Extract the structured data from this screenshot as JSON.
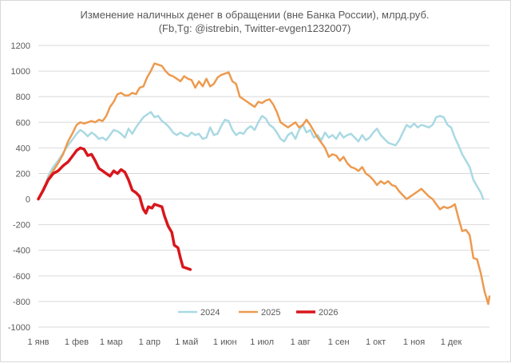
{
  "chart_data": {
    "type": "line",
    "title": "Изменение наличных денег в обращении (вне Банка России), млрд.руб.",
    "subtitle": "(Fb,Tg: @istrebin, Twitter-evgen1232007)",
    "xlabel": "",
    "ylabel": "",
    "x_tick_labels": [
      "1 янв",
      "1 фев",
      "1 мар",
      "1 апр",
      "1 май",
      "1 июн",
      "1 июл",
      "1 авг",
      "1 сен",
      "1 окт",
      "1 ноя",
      "1 дек"
    ],
    "x_tick_days": [
      1,
      32,
      60,
      91,
      121,
      152,
      182,
      213,
      244,
      274,
      305,
      335
    ],
    "x_range_days": [
      1,
      366
    ],
    "y_ticks": [
      1200,
      1000,
      800,
      600,
      400,
      200,
      0,
      -200,
      -400,
      -600,
      -800,
      -1000
    ],
    "ylim": [
      -1000,
      1200
    ],
    "grid": "horizontal",
    "legend_position": "bottom-center",
    "series": [
      {
        "name": "2024",
        "color": "#a9d9e3",
        "width": 2.5,
        "points": [
          [
            1,
            0
          ],
          [
            5,
            60
          ],
          [
            9,
            180
          ],
          [
            13,
            250
          ],
          [
            17,
            300
          ],
          [
            21,
            360
          ],
          [
            25,
            420
          ],
          [
            29,
            470
          ],
          [
            32,
            510
          ],
          [
            35,
            540
          ],
          [
            38,
            520
          ],
          [
            41,
            490
          ],
          [
            44,
            520
          ],
          [
            47,
            500
          ],
          [
            50,
            470
          ],
          [
            53,
            480
          ],
          [
            56,
            460
          ],
          [
            59,
            500
          ],
          [
            62,
            540
          ],
          [
            65,
            530
          ],
          [
            68,
            510
          ],
          [
            71,
            480
          ],
          [
            74,
            550
          ],
          [
            77,
            510
          ],
          [
            80,
            560
          ],
          [
            83,
            600
          ],
          [
            86,
            640
          ],
          [
            89,
            660
          ],
          [
            92,
            680
          ],
          [
            95,
            640
          ],
          [
            98,
            650
          ],
          [
            101,
            610
          ],
          [
            104,
            590
          ],
          [
            107,
            560
          ],
          [
            110,
            520
          ],
          [
            113,
            500
          ],
          [
            116,
            520
          ],
          [
            119,
            500
          ],
          [
            122,
            490
          ],
          [
            125,
            520
          ],
          [
            128,
            500
          ],
          [
            131,
            510
          ],
          [
            134,
            470
          ],
          [
            137,
            480
          ],
          [
            140,
            560
          ],
          [
            143,
            500
          ],
          [
            146,
            510
          ],
          [
            149,
            570
          ],
          [
            152,
            620
          ],
          [
            155,
            610
          ],
          [
            158,
            540
          ],
          [
            161,
            500
          ],
          [
            164,
            520
          ],
          [
            167,
            510
          ],
          [
            170,
            550
          ],
          [
            173,
            570
          ],
          [
            176,
            540
          ],
          [
            179,
            600
          ],
          [
            182,
            650
          ],
          [
            185,
            630
          ],
          [
            188,
            580
          ],
          [
            191,
            560
          ],
          [
            194,
            520
          ],
          [
            197,
            470
          ],
          [
            200,
            450
          ],
          [
            203,
            500
          ],
          [
            206,
            520
          ],
          [
            209,
            470
          ],
          [
            212,
            540
          ],
          [
            215,
            580
          ],
          [
            218,
            520
          ],
          [
            221,
            540
          ],
          [
            224,
            480
          ],
          [
            227,
            500
          ],
          [
            230,
            460
          ],
          [
            233,
            520
          ],
          [
            236,
            480
          ],
          [
            239,
            500
          ],
          [
            242,
            470
          ],
          [
            245,
            520
          ],
          [
            248,
            480
          ],
          [
            251,
            500
          ],
          [
            254,
            510
          ],
          [
            257,
            480
          ],
          [
            260,
            450
          ],
          [
            263,
            500
          ],
          [
            266,
            460
          ],
          [
            269,
            480
          ],
          [
            272,
            520
          ],
          [
            275,
            550
          ],
          [
            278,
            500
          ],
          [
            281,
            470
          ],
          [
            284,
            440
          ],
          [
            287,
            430
          ],
          [
            290,
            420
          ],
          [
            293,
            460
          ],
          [
            296,
            520
          ],
          [
            299,
            580
          ],
          [
            302,
            560
          ],
          [
            305,
            590
          ],
          [
            308,
            560
          ],
          [
            311,
            580
          ],
          [
            314,
            570
          ],
          [
            317,
            560
          ],
          [
            320,
            580
          ],
          [
            323,
            640
          ],
          [
            326,
            650
          ],
          [
            329,
            640
          ],
          [
            332,
            580
          ],
          [
            335,
            560
          ],
          [
            338,
            480
          ],
          [
            341,
            420
          ],
          [
            344,
            350
          ],
          [
            347,
            300
          ],
          [
            350,
            250
          ],
          [
            353,
            150
          ],
          [
            356,
            100
          ],
          [
            359,
            50
          ],
          [
            361,
            0
          ]
        ]
      },
      {
        "name": "2025",
        "color": "#ed9a4f",
        "width": 2.5,
        "points": [
          [
            1,
            0
          ],
          [
            5,
            80
          ],
          [
            9,
            160
          ],
          [
            13,
            220
          ],
          [
            17,
            280
          ],
          [
            21,
            350
          ],
          [
            25,
            450
          ],
          [
            29,
            520
          ],
          [
            32,
            580
          ],
          [
            35,
            600
          ],
          [
            38,
            590
          ],
          [
            41,
            600
          ],
          [
            44,
            610
          ],
          [
            47,
            600
          ],
          [
            50,
            620
          ],
          [
            53,
            610
          ],
          [
            56,
            650
          ],
          [
            59,
            720
          ],
          [
            62,
            760
          ],
          [
            65,
            820
          ],
          [
            68,
            830
          ],
          [
            71,
            810
          ],
          [
            74,
            810
          ],
          [
            77,
            830
          ],
          [
            80,
            820
          ],
          [
            83,
            870
          ],
          [
            86,
            880
          ],
          [
            89,
            950
          ],
          [
            92,
            1000
          ],
          [
            95,
            1060
          ],
          [
            98,
            1050
          ],
          [
            101,
            1040
          ],
          [
            104,
            1000
          ],
          [
            107,
            970
          ],
          [
            110,
            960
          ],
          [
            113,
            940
          ],
          [
            116,
            920
          ],
          [
            119,
            960
          ],
          [
            122,
            940
          ],
          [
            125,
            930
          ],
          [
            128,
            870
          ],
          [
            131,
            920
          ],
          [
            134,
            880
          ],
          [
            137,
            940
          ],
          [
            140,
            880
          ],
          [
            143,
            900
          ],
          [
            146,
            950
          ],
          [
            149,
            970
          ],
          [
            152,
            980
          ],
          [
            155,
            990
          ],
          [
            158,
            920
          ],
          [
            161,
            900
          ],
          [
            164,
            800
          ],
          [
            167,
            780
          ],
          [
            170,
            760
          ],
          [
            173,
            740
          ],
          [
            176,
            720
          ],
          [
            179,
            760
          ],
          [
            182,
            750
          ],
          [
            185,
            770
          ],
          [
            188,
            780
          ],
          [
            191,
            740
          ],
          [
            194,
            680
          ],
          [
            197,
            600
          ],
          [
            200,
            580
          ],
          [
            203,
            560
          ],
          [
            206,
            580
          ],
          [
            209,
            600
          ],
          [
            212,
            560
          ],
          [
            215,
            580
          ],
          [
            218,
            620
          ],
          [
            221,
            580
          ],
          [
            224,
            530
          ],
          [
            227,
            480
          ],
          [
            230,
            440
          ],
          [
            233,
            400
          ],
          [
            236,
            330
          ],
          [
            239,
            350
          ],
          [
            242,
            340
          ],
          [
            245,
            300
          ],
          [
            248,
            330
          ],
          [
            251,
            280
          ],
          [
            254,
            250
          ],
          [
            257,
            240
          ],
          [
            260,
            220
          ],
          [
            263,
            250
          ],
          [
            266,
            200
          ],
          [
            269,
            180
          ],
          [
            272,
            150
          ],
          [
            275,
            110
          ],
          [
            278,
            140
          ],
          [
            281,
            120
          ],
          [
            284,
            140
          ],
          [
            287,
            110
          ],
          [
            290,
            100
          ],
          [
            293,
            60
          ],
          [
            296,
            30
          ],
          [
            299,
            0
          ],
          [
            302,
            20
          ],
          [
            305,
            40
          ],
          [
            308,
            60
          ],
          [
            311,
            80
          ],
          [
            314,
            50
          ],
          [
            317,
            20
          ],
          [
            320,
            0
          ],
          [
            323,
            -40
          ],
          [
            326,
            -80
          ],
          [
            329,
            -60
          ],
          [
            332,
            -70
          ],
          [
            335,
            -60
          ],
          [
            338,
            -40
          ],
          [
            341,
            -150
          ],
          [
            344,
            -250
          ],
          [
            347,
            -240
          ],
          [
            350,
            -280
          ],
          [
            353,
            -460
          ],
          [
            356,
            -470
          ],
          [
            359,
            -580
          ],
          [
            362,
            -720
          ],
          [
            365,
            -820
          ],
          [
            366,
            -760
          ]
        ]
      },
      {
        "name": "2026",
        "color": "#d9161c",
        "width": 3.5,
        "points": [
          [
            1,
            0
          ],
          [
            5,
            70
          ],
          [
            9,
            150
          ],
          [
            13,
            200
          ],
          [
            17,
            220
          ],
          [
            21,
            260
          ],
          [
            25,
            290
          ],
          [
            29,
            340
          ],
          [
            32,
            380
          ],
          [
            35,
            400
          ],
          [
            38,
            390
          ],
          [
            41,
            340
          ],
          [
            44,
            350
          ],
          [
            47,
            300
          ],
          [
            50,
            240
          ],
          [
            53,
            220
          ],
          [
            56,
            200
          ],
          [
            59,
            180
          ],
          [
            62,
            220
          ],
          [
            65,
            200
          ],
          [
            68,
            230
          ],
          [
            71,
            210
          ],
          [
            74,
            150
          ],
          [
            77,
            70
          ],
          [
            80,
            50
          ],
          [
            83,
            20
          ],
          [
            85,
            -50
          ],
          [
            86,
            -80
          ],
          [
            88,
            -110
          ],
          [
            90,
            -60
          ],
          [
            93,
            -70
          ],
          [
            95,
            -40
          ],
          [
            98,
            -50
          ],
          [
            101,
            -60
          ],
          [
            103,
            -130
          ],
          [
            106,
            -210
          ],
          [
            109,
            -260
          ],
          [
            111,
            -360
          ],
          [
            114,
            -380
          ],
          [
            116,
            -460
          ],
          [
            118,
            -530
          ],
          [
            121,
            -540
          ],
          [
            124,
            -550
          ]
        ]
      }
    ]
  }
}
